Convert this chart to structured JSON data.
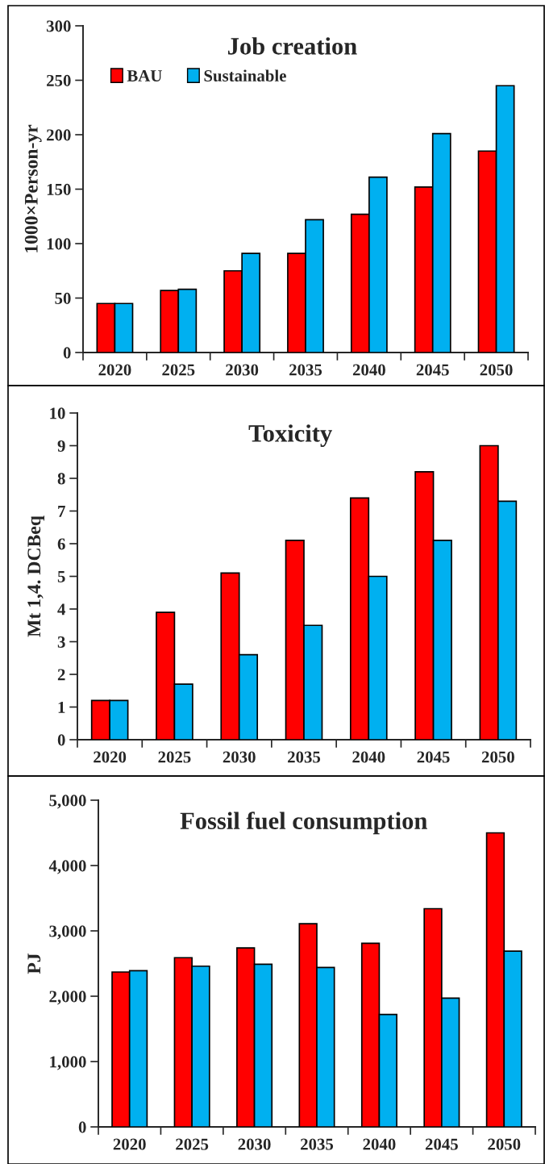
{
  "chart_data": [
    {
      "type": "bar",
      "title": "Job creation",
      "ylabel": "1000×Person-yr",
      "categories": [
        "2020",
        "2025",
        "2030",
        "2035",
        "2040",
        "2045",
        "2050"
      ],
      "series": [
        {
          "name": "BAU",
          "color": "#ff0000",
          "values": [
            45,
            57,
            75,
            91,
            127,
            152,
            185
          ]
        },
        {
          "name": "Sustainable",
          "color": "#00b0f0",
          "values": [
            45,
            58,
            91,
            122,
            161,
            201,
            245
          ]
        }
      ],
      "ylim": [
        0,
        300
      ],
      "yticks": [
        0,
        50,
        100,
        150,
        200,
        250,
        300
      ],
      "legend": "top left",
      "grid": false
    },
    {
      "type": "bar",
      "title": "Toxicity",
      "ylabel": "Mt 1,4. DCBeq",
      "categories": [
        "2020",
        "2025",
        "2030",
        "2035",
        "2040",
        "2045",
        "2050"
      ],
      "series": [
        {
          "color": "#ff0000",
          "values": [
            1.2,
            3.9,
            5.1,
            6.1,
            7.4,
            8.2,
            9.0
          ]
        },
        {
          "color": "#00b0f0",
          "values": [
            1.2,
            1.7,
            2.6,
            3.5,
            5.0,
            6.1,
            7.3
          ]
        }
      ],
      "ylim": [
        0,
        10
      ],
      "yticks": [
        0,
        1,
        2,
        3,
        4,
        5,
        6,
        7,
        8,
        9,
        10
      ],
      "grid": false
    },
    {
      "type": "bar",
      "title": "Fossil fuel consumption",
      "ylabel": "PJ",
      "categories": [
        "2020",
        "2025",
        "2030",
        "2035",
        "2040",
        "2045",
        "2050"
      ],
      "series": [
        {
          "color": "#ff0000",
          "values": [
            2370,
            2590,
            2740,
            3110,
            2810,
            3340,
            4500
          ]
        },
        {
          "color": "#00b0f0",
          "values": [
            2390,
            2460,
            2490,
            2440,
            1720,
            1970,
            2690
          ]
        }
      ],
      "ylim": [
        0,
        5000
      ],
      "yticks": [
        0,
        {
          "value": 1000,
          "label": "1,000"
        },
        {
          "value": 2000,
          "label": "2,000"
        },
        {
          "value": 3000,
          "label": "3,000"
        },
        {
          "value": 4000,
          "label": "4,000"
        },
        {
          "value": 5000,
          "label": "5,000"
        }
      ],
      "grid": false
    }
  ]
}
